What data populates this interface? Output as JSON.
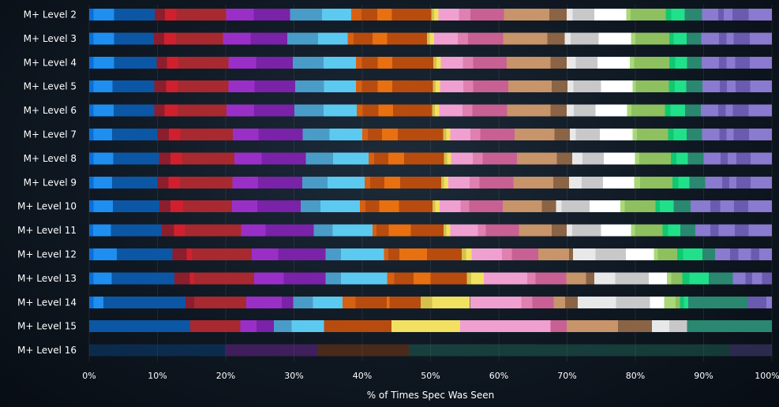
{
  "chart_data": {
    "type": "bar",
    "orientation": "horizontal",
    "stacked": true,
    "title": "",
    "xlabel": "% of Times Spec Was Seen",
    "ylabel": "",
    "xlim": [
      0,
      100
    ],
    "xticks": [
      "0%",
      "10%",
      "20%",
      "30%",
      "40%",
      "50%",
      "60%",
      "70%",
      "80%",
      "90%",
      "100%"
    ],
    "categories": [
      "M+ Level 2",
      "M+ Level 3",
      "M+ Level 4",
      "M+ Level 5",
      "M+ Level 6",
      "M+ Level 7",
      "M+ Level 8",
      "M+ Level 9",
      "M+ Level 10",
      "M+ Level 11",
      "M+ Level 12",
      "M+ Level 13",
      "M+ Level 14",
      "M+ Level 15",
      "M+ Level 16"
    ],
    "palette": [
      "#0a6fd8",
      "#1e8ff0",
      "#0b57a6",
      "#8c1e2e",
      "#d0202e",
      "#a8292f",
      "#9a2fc8",
      "#7a22a8",
      "#4a9cc8",
      "#5ccaf0",
      "#d86012",
      "#e87010",
      "#b84c0e",
      "#d4c04a",
      "#f2e060",
      "#f0a0d0",
      "#e080b0",
      "#c86094",
      "#c8946a",
      "#8a6444",
      "#e8e8e8",
      "#c8c8c8",
      "#ffffff",
      "#a8d878",
      "#8ec060",
      "#10c870",
      "#20e08a",
      "#2a8870",
      "#8a7ad0",
      "#6a5ab0"
    ],
    "series_values": [
      [
        0.6,
        2.8,
        5.6,
        1.4,
        1.6,
        6.8,
        3.8,
        5.0,
        4.4,
        4.0,
        1.4,
        2.2,
        2.0,
        5.4,
        0.4,
        0.6,
        2.8,
        1.6,
        4.6,
        6.2,
        2.4,
        0.8,
        3.0,
        4.4,
        0.6,
        4.8,
        0.8,
        1.8,
        2.4,
        2.2,
        0.8,
        1.2,
        2.2,
        3.2,
        0
      ],
      [
        0.6,
        2.8,
        5.4,
        1.4,
        1.6,
        6.4,
        3.8,
        5.0,
        4.2,
        4.0,
        0.8,
        2.6,
        2.0,
        5.4,
        0.4,
        0.6,
        3.2,
        1.4,
        4.8,
        6.0,
        2.4,
        0.8,
        3.8,
        4.4,
        0.6,
        4.6,
        0.6,
        1.8,
        2.0,
        2.4,
        1.0,
        1.0,
        2.2,
        3.0,
        0
      ],
      [
        0.6,
        2.8,
        5.8,
        1.4,
        1.6,
        6.8,
        3.8,
        5.0,
        4.2,
        4.4,
        0.8,
        2.2,
        2.0,
        5.6,
        0.4,
        0.6,
        3.0,
        1.4,
        4.6,
        6.0,
        2.2,
        1.2,
        3.0,
        4.4,
        0.6,
        4.8,
        0.8,
        1.6,
        2.0,
        2.4,
        1.0,
        1.2,
        2.0,
        3.0,
        0
      ],
      [
        0.6,
        2.6,
        5.8,
        1.6,
        1.6,
        7.0,
        3.6,
        5.6,
        4.0,
        4.4,
        0.8,
        2.2,
        2.0,
        5.6,
        0.4,
        0.6,
        3.2,
        1.4,
        4.8,
        6.0,
        2.2,
        0.8,
        3.8,
        4.4,
        0.4,
        4.6,
        0.8,
        1.6,
        2.2,
        2.4,
        1.0,
        1.2,
        2.0,
        3.0,
        0
      ],
      [
        0.6,
        2.8,
        5.6,
        1.4,
        1.8,
        6.8,
        3.8,
        5.6,
        4.0,
        4.6,
        0.8,
        2.2,
        2.0,
        5.4,
        0.4,
        0.6,
        3.2,
        1.4,
        4.8,
        6.0,
        2.2,
        1.0,
        3.0,
        4.4,
        0.6,
        4.6,
        0.8,
        2.0,
        2.2,
        2.4,
        1.0,
        1.0,
        2.2,
        3.2,
        0
      ],
      [
        0.6,
        2.6,
        6.4,
        1.6,
        1.6,
        7.4,
        3.6,
        6.2,
        3.8,
        4.6,
        0.8,
        2.0,
        2.2,
        6.4,
        0.4,
        0.6,
        2.8,
        1.4,
        4.8,
        5.6,
        2.2,
        0.8,
        3.4,
        4.6,
        0.6,
        4.4,
        0.8,
        1.8,
        2.2,
        2.4,
        1.0,
        1.0,
        2.2,
        3.2,
        0
      ],
      [
        0.6,
        2.8,
        6.4,
        1.6,
        1.6,
        7.4,
        3.8,
        6.2,
        3.8,
        5.0,
        0.8,
        2.0,
        2.2,
        5.6,
        0.4,
        0.6,
        3.0,
        1.4,
        4.8,
        5.6,
        2.2,
        1.4,
        3.0,
        4.4,
        0.6,
        4.4,
        0.8,
        1.6,
        2.2,
        2.4,
        1.0,
        1.2,
        2.0,
        3.0,
        0
      ],
      [
        0.6,
        2.6,
        6.4,
        1.6,
        1.6,
        7.4,
        3.6,
        6.2,
        3.6,
        5.2,
        0.8,
        2.0,
        2.2,
        5.8,
        0.4,
        0.6,
        3.0,
        1.4,
        4.8,
        5.6,
        2.2,
        1.8,
        3.0,
        4.4,
        0.8,
        4.6,
        0.8,
        1.6,
        2.2,
        2.4,
        1.0,
        1.0,
        2.0,
        3.0,
        0
      ],
      [
        0.6,
        2.8,
        6.6,
        1.6,
        1.8,
        7.0,
        3.6,
        6.2,
        2.8,
        5.6,
        0.8,
        2.0,
        2.8,
        4.8,
        0.4,
        0.6,
        3.0,
        1.2,
        4.8,
        5.6,
        2.0,
        0.8,
        4.0,
        4.4,
        0.6,
        4.4,
        0.6,
        2.0,
        2.4,
        2.8,
        1.4,
        2.0,
        2.0,
        3.4,
        0
      ],
      [
        0.6,
        2.6,
        7.4,
        1.8,
        1.6,
        8.2,
        3.6,
        7.0,
        2.8,
        5.8,
        0.6,
        1.8,
        3.2,
        4.8,
        0.4,
        0.6,
        4.0,
        1.2,
        4.8,
        4.8,
        2.2,
        0.8,
        4.2,
        4.4,
        0.6,
        4.0,
        0.8,
        1.8,
        2.2,
        2.2,
        1.2,
        2.4,
        2.0,
        3.4,
        0
      ],
      [
        0.6,
        3.4,
        8.0,
        2.0,
        0.8,
        8.6,
        3.8,
        6.8,
        2.2,
        6.2,
        0.6,
        1.6,
        4.0,
        5.0,
        0.6,
        0.8,
        4.4,
        1.4,
        3.8,
        4.4,
        0.6,
        3.2,
        4.4,
        4.0,
        0.6,
        2.8,
        0.8,
        2.8,
        1.8,
        2.2,
        1.2,
        1.8,
        1.2,
        1.8,
        0
      ],
      [
        0.6,
        2.6,
        9.0,
        2.2,
        0.6,
        8.6,
        4.2,
        6.0,
        2.2,
        6.6,
        1.0,
        2.8,
        2.4,
        5.2,
        0.6,
        1.8,
        6.2,
        1.2,
        4.4,
        2.8,
        1.2,
        3.0,
        4.8,
        2.6,
        0.6,
        1.6,
        1.0,
        2.8,
        3.4,
        1.8,
        1.0,
        1.4,
        1.4,
        0,
        0
      ],
      [
        0.6,
        1.4,
        11.6,
        1.2,
        0,
        7.4,
        5.0,
        1.6,
        2.8,
        4.2,
        1.8,
        4.4,
        0.4,
        4.4,
        1.6,
        5.4,
        7.2,
        1.6,
        3.0,
        1.6,
        1.8,
        5.4,
        4.8,
        2.0,
        1.6,
        0.6,
        0.6,
        0.6,
        8.4,
        0,
        2.6,
        0.8,
        0,
        0,
        0
      ],
      [
        0,
        0,
        15.0,
        0,
        0,
        7.4,
        2.4,
        2.6,
        2.6,
        4.8,
        0,
        7.4,
        0,
        2.6,
        0,
        10.2,
        13.4,
        0,
        2.4,
        7.6,
        5.0,
        2.6,
        2.6,
        0,
        0,
        0,
        0,
        0,
        12.6,
        0,
        0,
        0,
        0,
        0,
        0
      ],
      [
        0,
        0,
        20.0,
        0,
        0,
        0,
        13.4,
        0,
        0,
        0,
        0,
        0,
        0,
        13.4,
        0,
        0,
        0,
        0,
        0,
        0,
        0,
        0,
        0,
        0,
        0,
        0,
        0,
        0,
        47.0,
        0,
        0,
        0,
        6.2,
        0,
        0
      ]
    ],
    "segment_colors": [
      [
        "#0a6fd8",
        "#1e8ff0",
        "#0b57a6",
        "#8c1e2e",
        "#d0202e",
        "#a8292f",
        "#9a2fc8",
        "#7a22a8",
        "#4a9cc8",
        "#5ccaf0",
        "#d86012",
        "#b84c0e",
        "#e87010",
        "#b84c0e",
        "#d4c04a",
        "#f2e060",
        "#f0a0d0",
        "#e080b0",
        "#c86094",
        "#c8946a",
        "#8a6444",
        "#e8e8e8",
        "#c8c8c8",
        "#ffffff",
        "#a8d878",
        "#8ec060",
        "#10c870",
        "#20e08a",
        "#2a8870",
        "#8a7ad0",
        "#6a5ab0",
        "#8a7ad0",
        "#6a5ab0",
        "#8a7ad0",
        "#6a5ab0"
      ]
    ],
    "faded_rows": [
      14
    ]
  }
}
